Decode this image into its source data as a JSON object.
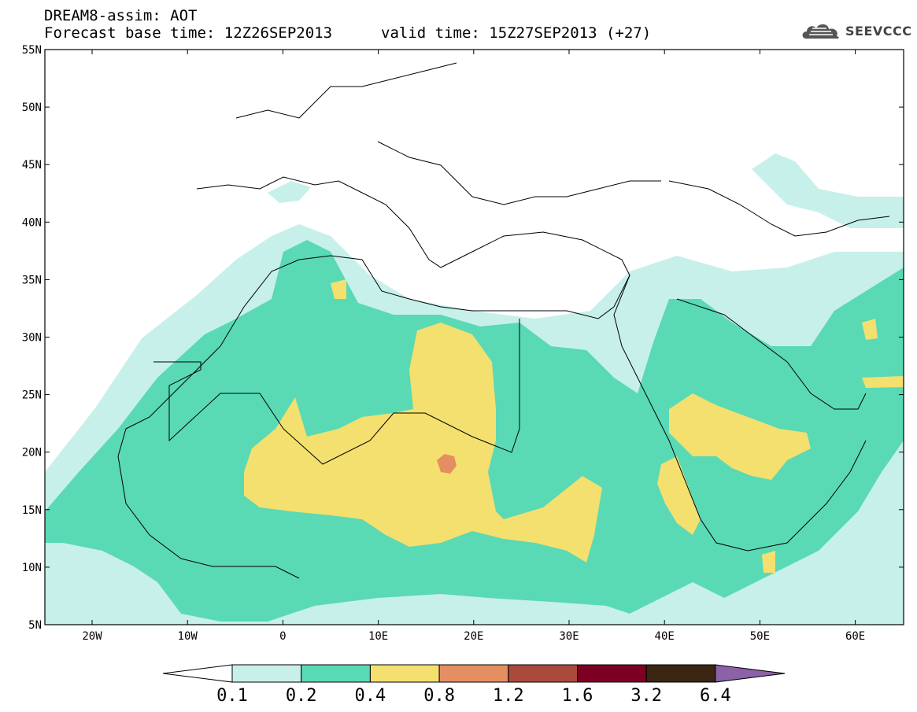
{
  "header": {
    "title": "DREAM8-assim: AOT",
    "forecast_base": "Forecast base time: 12Z26SEP2013",
    "valid_time": "valid time: 15Z27SEP2013 (+27)",
    "logo_text": "SEEVCCC",
    "logo_icon": "cloud-icon"
  },
  "map": {
    "lat_labels": [
      "55N",
      "50N",
      "45N",
      "40N",
      "35N",
      "30N",
      "25N",
      "20N",
      "15N",
      "10N",
      "5N"
    ],
    "lon_labels": [
      "20W",
      "10W",
      "0",
      "10E",
      "20E",
      "30E",
      "40E",
      "50E",
      "60E"
    ]
  },
  "colorbar": {
    "labels": [
      "0.1",
      "0.2",
      "0.4",
      "0.8",
      "1.2",
      "1.6",
      "3.2",
      "6.4"
    ],
    "colors": [
      "#ffffff",
      "#c7f0ea",
      "#5ad9b5",
      "#f3e06e",
      "#e58e62",
      "#ab4a3a",
      "#7d0023",
      "#3a2612",
      "#8b62a8"
    ]
  }
}
